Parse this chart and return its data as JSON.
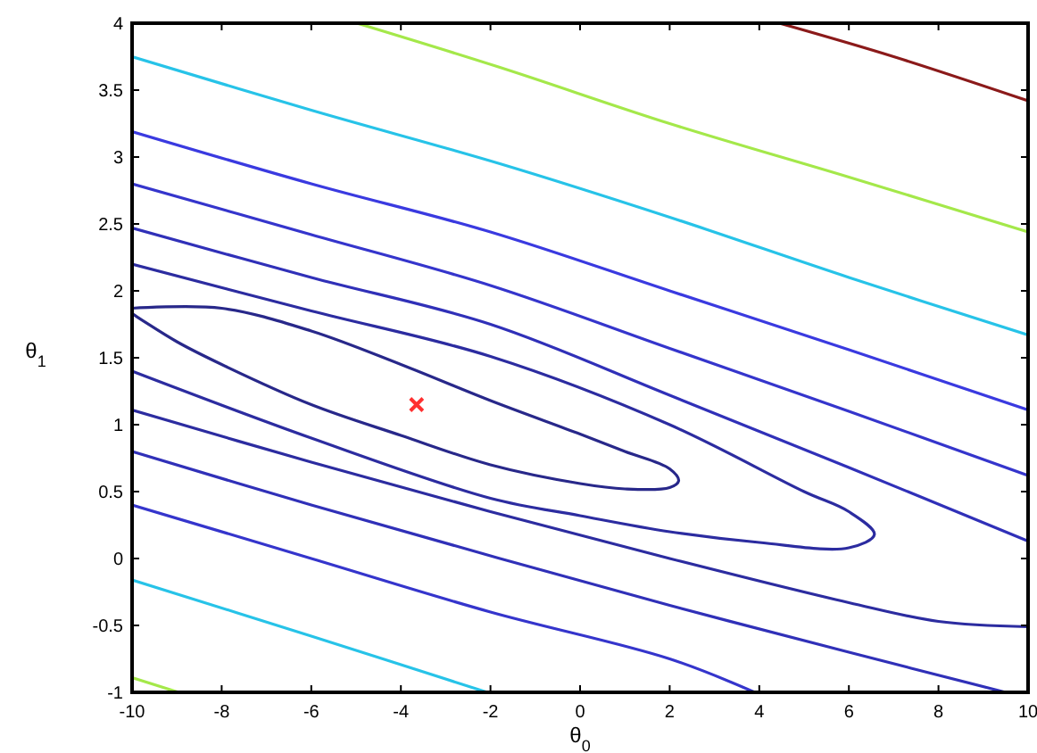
{
  "chart_data": {
    "type": "line",
    "xlabel": "θ$_{0}$",
    "ylabel": "θ$_{1}$",
    "xlim": [
      -10,
      10
    ],
    "ylim": [
      -1,
      4
    ],
    "xticks": [
      -10,
      -8,
      -6,
      -4,
      -2,
      0,
      2,
      4,
      6,
      8,
      10
    ],
    "yticks": [
      -1,
      -0.5,
      0,
      0.5,
      1,
      1.5,
      2,
      2.5,
      3,
      3.5,
      4
    ],
    "grid": false,
    "line_style": "solid",
    "series": [
      {
        "color": "#8b1a1a",
        "x": [
          4.45,
          7,
          10
        ],
        "values": [
          4,
          3.75,
          3.42
        ]
      },
      {
        "color": "#a4e84a",
        "x": [
          -4.98,
          -1.79,
          2,
          6,
          10
        ],
        "values": [
          4,
          3.67,
          3.25,
          2.85,
          2.44
        ]
      },
      {
        "color": "#27c3e8",
        "x": [
          -10,
          -6,
          -1.79,
          2,
          6,
          10
        ],
        "values": [
          3.75,
          3.35,
          2.95,
          2.55,
          2.1,
          1.67
        ]
      },
      {
        "color": "#3a3ae0",
        "x": [
          -10,
          -6,
          -2,
          2,
          6,
          10
        ],
        "values": [
          3.19,
          2.8,
          2.44,
          2.0,
          1.56,
          1.11
        ]
      },
      {
        "color": "#3535cc",
        "x": [
          -10,
          -6,
          -2,
          2,
          6,
          10
        ],
        "values": [
          2.8,
          2.42,
          2.04,
          1.57,
          1.1,
          0.62
        ]
      },
      {
        "color": "#3030b8",
        "x": [
          -10,
          -6,
          -2,
          2,
          6,
          10
        ],
        "values": [
          2.47,
          2.1,
          1.75,
          1.22,
          0.68,
          0.13
        ]
      },
      {
        "color": "#2c2ca0",
        "x": [
          -10,
          -6,
          -2,
          2,
          5,
          6,
          6.57,
          6,
          4,
          2,
          0,
          -2,
          -6,
          -10
        ],
        "values": [
          2.2,
          1.85,
          1.51,
          1.0,
          0.5,
          0.35,
          0.18,
          0.08,
          0.12,
          0.2,
          0.32,
          0.45,
          0.9,
          1.4
        ]
      },
      {
        "color": "#28288a",
        "x": [
          -10,
          -8,
          -6,
          -4,
          -2,
          0,
          1,
          2,
          2.2,
          2,
          1,
          0,
          -2,
          -4,
          -6,
          -8,
          -9,
          -10
        ],
        "values": [
          1.87,
          1.87,
          1.7,
          1.45,
          1.18,
          0.93,
          0.8,
          0.67,
          0.58,
          0.53,
          0.52,
          0.56,
          0.7,
          0.92,
          1.15,
          1.45,
          1.62,
          1.83
        ]
      },
      {
        "color": "#2c2ca0",
        "x": [
          -10,
          -6,
          -2,
          2,
          6,
          8,
          10
        ],
        "values": [
          1.11,
          0.72,
          0.35,
          0.0,
          -0.33,
          -0.47,
          -0.51
        ]
      },
      {
        "color": "#3030b8",
        "x": [
          -10,
          -6,
          -2,
          2,
          6,
          9.5
        ],
        "values": [
          0.8,
          0.4,
          0.02,
          -0.35,
          -0.7,
          -1
        ]
      },
      {
        "color": "#3535cc",
        "x": [
          -10,
          -6,
          -2,
          2,
          3.9
        ],
        "values": [
          0.4,
          0.0,
          -0.4,
          -0.75,
          -1
        ]
      },
      {
        "color": "#27c3e8",
        "x": [
          -10,
          -6,
          -2.07
        ],
        "values": [
          -0.16,
          -0.58,
          -1
        ]
      },
      {
        "color": "#a4e84a",
        "x": [
          -10,
          -8.96
        ],
        "values": [
          -0.89,
          -1
        ]
      },
      {
        "type": "scatter",
        "marker": "cross",
        "color": "#ff3030",
        "x": [
          -3.65
        ],
        "values": [
          1.15
        ]
      }
    ]
  }
}
